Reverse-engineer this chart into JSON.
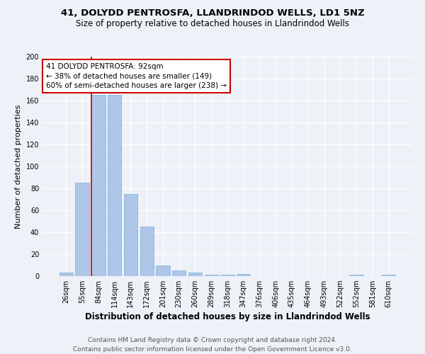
{
  "title1": "41, DOLYDD PENTROSFA, LLANDRINDOD WELLS, LD1 5NZ",
  "title2": "Size of property relative to detached houses in Llandrindod Wells",
  "xlabel": "Distribution of detached houses by size in Llandrindod Wells",
  "ylabel": "Number of detached properties",
  "footer1": "Contains HM Land Registry data © Crown copyright and database right 2024.",
  "footer2": "Contains public sector information licensed under the Open Government Licence v3.0.",
  "categories": [
    "26sqm",
    "55sqm",
    "84sqm",
    "114sqm",
    "143sqm",
    "172sqm",
    "201sqm",
    "230sqm",
    "260sqm",
    "289sqm",
    "318sqm",
    "347sqm",
    "376sqm",
    "406sqm",
    "435sqm",
    "464sqm",
    "493sqm",
    "522sqm",
    "552sqm",
    "581sqm",
    "610sqm"
  ],
  "values": [
    3,
    85,
    165,
    165,
    75,
    45,
    10,
    5,
    3,
    1,
    1,
    2,
    0,
    0,
    0,
    0,
    0,
    0,
    1,
    0,
    1
  ],
  "bar_color": "#aec6e8",
  "bar_edge_color": "#7aadd4",
  "property_bin_index": 2,
  "annotation_line1": "41 DOLYDD PENTROSFA: 92sqm",
  "annotation_line2": "← 38% of detached houses are smaller (149)",
  "annotation_line3": "60% of semi-detached houses are larger (238) →",
  "annotation_box_color": "#ffffff",
  "annotation_box_edge_color": "#cc0000",
  "vline_color": "#cc0000",
  "ylim": [
    0,
    200
  ],
  "yticks": [
    0,
    20,
    40,
    60,
    80,
    100,
    120,
    140,
    160,
    180,
    200
  ],
  "background_color": "#eef2f8",
  "grid_color": "#ffffff",
  "title_fontsize": 9.5,
  "subtitle_fontsize": 8.5,
  "ylabel_fontsize": 8,
  "xlabel_fontsize": 8.5,
  "tick_fontsize": 7,
  "annotation_fontsize": 7.5,
  "footer_fontsize": 6.5
}
